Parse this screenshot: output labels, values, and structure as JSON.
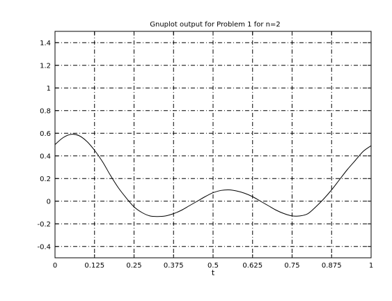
{
  "chart_data": {
    "type": "line",
    "title": "Gnuplot output for Problem 1 for n=2",
    "xlabel": "t",
    "ylabel": "",
    "xlim": [
      0,
      1
    ],
    "ylim": [
      -0.5,
      1.5
    ],
    "x_ticks": [
      "0",
      "0.125",
      "0.25",
      "0.375",
      "0.5",
      "0.625",
      "0.75",
      "0.875",
      "1"
    ],
    "y_ticks": [
      "-0.4",
      "-0.2",
      "0",
      "0.2",
      "0.4",
      "0.6",
      "0.8",
      "1",
      "1.2",
      "1.4"
    ],
    "grid": true,
    "grid_style": "dash-dot",
    "line_color": "#000000",
    "series": [
      {
        "x": [
          0,
          0.025,
          0.05,
          0.075,
          0.1,
          0.125,
          0.15,
          0.175,
          0.2,
          0.225,
          0.25,
          0.275,
          0.3,
          0.325,
          0.35,
          0.375,
          0.4,
          0.425,
          0.45,
          0.475,
          0.5,
          0.525,
          0.55,
          0.575,
          0.6,
          0.625,
          0.65,
          0.675,
          0.7,
          0.725,
          0.75,
          0.775,
          0.8,
          0.825,
          0.85,
          0.875,
          0.9,
          0.925,
          0.95,
          0.975,
          1
        ],
        "y": [
          0.5,
          0.56,
          0.59,
          0.58,
          0.53,
          0.45,
          0.35,
          0.23,
          0.12,
          0.03,
          -0.05,
          -0.1,
          -0.13,
          -0.135,
          -0.13,
          -0.11,
          -0.08,
          -0.04,
          0.0,
          0.04,
          0.075,
          0.095,
          0.1,
          0.09,
          0.07,
          0.04,
          0.0,
          -0.04,
          -0.08,
          -0.11,
          -0.13,
          -0.13,
          -0.11,
          -0.05,
          0.02,
          0.1,
          0.19,
          0.28,
          0.36,
          0.44,
          0.49
        ]
      }
    ]
  }
}
